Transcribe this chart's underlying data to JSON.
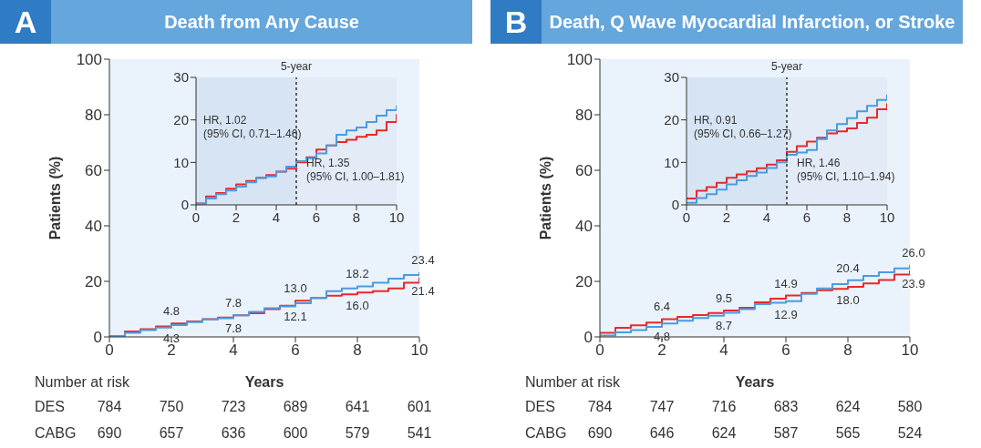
{
  "chart_data": [
    {
      "type": "step",
      "title": "Death from Any Cause",
      "ylabel": "Patients (%)",
      "xlabel": "Years",
      "annotations": [
        "A",
        "Number at risk",
        "DES 784 750 723 689 641 601",
        "CABG 690 657 636 600 579 541"
      ],
      "xlim": [
        0,
        10
      ],
      "xticks": [
        0,
        2,
        4,
        6,
        8,
        10
      ],
      "ylim": [
        0,
        100
      ],
      "yticks": [
        0,
        20,
        40,
        60,
        80,
        100
      ],
      "x": [
        0,
        0.5,
        1,
        1.5,
        2,
        2.5,
        3,
        3.5,
        4,
        4.5,
        5,
        5.5,
        6,
        6.5,
        7,
        7.5,
        8,
        8.5,
        9,
        9.5,
        10
      ],
      "series": [
        {
          "color": "#e8292b",
          "values": [
            0.3,
            2.0,
            2.8,
            3.8,
            4.8,
            5.6,
            6.4,
            7.0,
            7.8,
            8.5,
            10.0,
            11.2,
            13.0,
            14.0,
            14.8,
            15.3,
            16.0,
            16.5,
            17.5,
            19.5,
            21.4
          ],
          "value_labels": [
            null,
            null,
            null,
            null,
            "4.8",
            null,
            null,
            null,
            "7.8",
            null,
            null,
            null,
            "13.0",
            null,
            null,
            null,
            "16.0",
            null,
            null,
            null,
            "21.4"
          ]
        },
        {
          "color": "#4a9be0",
          "values": [
            0.3,
            1.5,
            2.5,
            3.4,
            4.3,
            5.3,
            6.3,
            6.7,
            7.8,
            9.0,
            10.3,
            11.0,
            12.1,
            14.0,
            16.5,
            17.5,
            18.2,
            19.5,
            21.0,
            22.3,
            23.4
          ],
          "value_labels": [
            null,
            null,
            null,
            null,
            "4.3",
            null,
            null,
            null,
            "7.8",
            null,
            null,
            null,
            "12.1",
            null,
            null,
            null,
            "18.2",
            null,
            null,
            null,
            "23.4"
          ]
        }
      ]
    },
    {
      "type": "step",
      "xlim": [
        0,
        10
      ],
      "xticks": [
        0,
        2,
        4,
        6,
        8,
        10
      ],
      "ylim": [
        0,
        30
      ],
      "yticks": [
        0,
        10,
        20,
        30
      ],
      "ref_lines": [
        {
          "axis": "x",
          "value": 5,
          "label": "5-year",
          "line_style": "dashed"
        }
      ],
      "bands": [
        {
          "axis": "x",
          "from": 0,
          "to": 5,
          "color": "#d6e4f3"
        }
      ],
      "annotations": [
        "HR, 1.02\n(95% CI, 0.71–1.46)",
        "HR, 1.35\n(95% CI, 1.00–1.81)"
      ],
      "x": [
        0,
        0.5,
        1,
        1.5,
        2,
        2.5,
        3,
        3.5,
        4,
        4.5,
        5,
        5.5,
        6,
        6.5,
        7,
        7.5,
        8,
        8.5,
        9,
        9.5,
        10
      ],
      "series": [
        {
          "color": "#e8292b",
          "values": [
            0.3,
            2.0,
            2.8,
            3.8,
            4.8,
            5.6,
            6.4,
            7.0,
            7.8,
            8.5,
            10.0,
            11.2,
            13.0,
            14.0,
            14.8,
            15.3,
            16.0,
            16.5,
            17.5,
            19.5,
            21.4
          ]
        },
        {
          "color": "#4a9be0",
          "values": [
            0.3,
            1.5,
            2.5,
            3.4,
            4.3,
            5.3,
            6.3,
            6.7,
            7.8,
            9.0,
            10.3,
            11.0,
            12.1,
            14.0,
            16.5,
            17.5,
            18.2,
            19.5,
            21.0,
            22.3,
            23.4
          ]
        }
      ]
    },
    {
      "type": "step",
      "title": "Death, Q Wave Myocardial Infarction, or Stroke",
      "ylabel": "Patients (%)",
      "xlabel": "Years",
      "annotations": [
        "B",
        "Number at risk",
        "DES 784 747 716 683 624 580",
        "CABG 690 646 624 587 565 524"
      ],
      "xlim": [
        0,
        10
      ],
      "xticks": [
        0,
        2,
        4,
        6,
        8,
        10
      ],
      "ylim": [
        0,
        100
      ],
      "yticks": [
        0,
        20,
        40,
        60,
        80,
        100
      ],
      "x": [
        0,
        0.5,
        1,
        1.5,
        2,
        2.5,
        3,
        3.5,
        4,
        4.5,
        5,
        5.5,
        6,
        6.5,
        7,
        7.5,
        8,
        8.5,
        9,
        9.5,
        10
      ],
      "series": [
        {
          "color": "#e8292b",
          "values": [
            1.5,
            3.3,
            4.2,
            5.2,
            6.4,
            7.2,
            7.9,
            8.6,
            9.5,
            10.5,
            12.5,
            13.8,
            14.9,
            15.8,
            16.8,
            17.3,
            18.0,
            19.3,
            20.5,
            22.5,
            23.9
          ],
          "value_labels": [
            null,
            null,
            null,
            null,
            "6.4",
            null,
            null,
            null,
            "9.5",
            null,
            null,
            null,
            "14.9",
            null,
            null,
            null,
            "18.0",
            null,
            null,
            null,
            "23.9"
          ]
        },
        {
          "color": "#4a9be0",
          "values": [
            0.5,
            1.6,
            2.5,
            3.6,
            4.8,
            5.8,
            6.8,
            7.6,
            8.7,
            10.0,
            11.8,
            12.3,
            12.9,
            15.5,
            17.5,
            19.0,
            20.4,
            22.0,
            23.3,
            24.7,
            26.0
          ],
          "value_labels": [
            null,
            null,
            null,
            null,
            "4.8",
            null,
            null,
            null,
            "8.7",
            null,
            null,
            null,
            "12.9",
            null,
            null,
            null,
            "20.4",
            null,
            null,
            null,
            "26.0"
          ]
        }
      ]
    },
    {
      "type": "step",
      "xlim": [
        0,
        10
      ],
      "xticks": [
        0,
        2,
        4,
        6,
        8,
        10
      ],
      "ylim": [
        0,
        30
      ],
      "yticks": [
        0,
        10,
        20,
        30
      ],
      "ref_lines": [
        {
          "axis": "x",
          "value": 5,
          "label": "5-year",
          "line_style": "dashed"
        }
      ],
      "bands": [
        {
          "axis": "x",
          "from": 0,
          "to": 5,
          "color": "#d6e4f3"
        }
      ],
      "annotations": [
        "HR, 0.91\n(95% CI, 0.66–1.27)",
        "HR, 1.46\n(95% CI, 1.10–1.94)"
      ],
      "x": [
        0,
        0.5,
        1,
        1.5,
        2,
        2.5,
        3,
        3.5,
        4,
        4.5,
        5,
        5.5,
        6,
        6.5,
        7,
        7.5,
        8,
        8.5,
        9,
        9.5,
        10
      ],
      "series": [
        {
          "color": "#e8292b",
          "values": [
            1.5,
            3.3,
            4.2,
            5.2,
            6.4,
            7.2,
            7.9,
            8.6,
            9.5,
            10.5,
            12.5,
            13.8,
            14.9,
            15.8,
            16.8,
            17.3,
            18.0,
            19.3,
            20.5,
            22.5,
            23.9
          ]
        },
        {
          "color": "#4a9be0",
          "values": [
            0.5,
            1.6,
            2.5,
            3.6,
            4.8,
            5.8,
            6.8,
            7.6,
            8.7,
            10.0,
            11.8,
            12.3,
            12.9,
            15.5,
            17.5,
            19.0,
            20.4,
            22.0,
            23.3,
            24.7,
            26.0
          ]
        }
      ]
    }
  ]
}
